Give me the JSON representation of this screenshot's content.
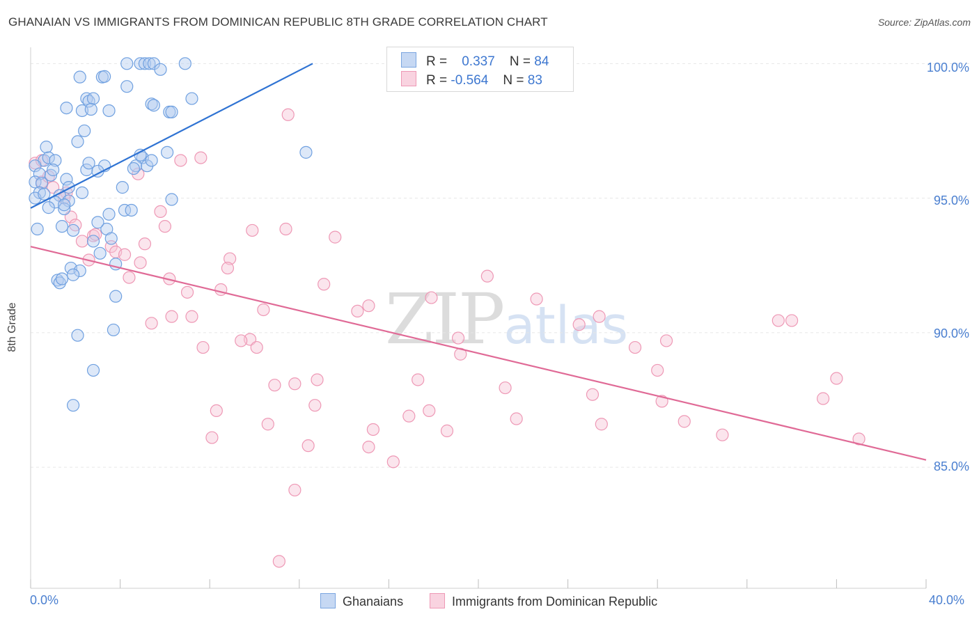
{
  "title": "GHANAIAN VS IMMIGRANTS FROM DOMINICAN REPUBLIC 8TH GRADE CORRELATION CHART",
  "source": "Source: ZipAtlas.com",
  "watermark": {
    "zip": "ZIP",
    "atlas": "atlas"
  },
  "stats": {
    "row1": {
      "r_label": "R =",
      "r_value": "0.337",
      "n_label": "N =",
      "n_value": "84"
    },
    "row2": {
      "r_label": "R =",
      "r_value": "-0.564",
      "n_label": "N =",
      "n_value": "83"
    }
  },
  "legend": {
    "series1": "Ghanaians",
    "series2": "Immigrants from Dominican Republic"
  },
  "colors": {
    "blue": "#6fa0e0",
    "blue_line": "#2f73d3",
    "pink": "#ee98b5",
    "pink_line": "#e06a96",
    "tick": "#4a7fd0",
    "grid": "#e6e6e6"
  },
  "chart_data": {
    "type": "scatter",
    "title": "GHANAIAN VS IMMIGRANTS FROM DOMINICAN REPUBLIC 8TH GRADE CORRELATION CHART",
    "xlabel": "",
    "ylabel": "8th Grade",
    "xlim": [
      0,
      40
    ],
    "ylim": [
      80.5,
      100.5
    ],
    "x_tick_labels": [
      "0.0%",
      "40.0%"
    ],
    "y_ticks": [
      85,
      90,
      95,
      100
    ],
    "y_tick_labels": [
      "85.0%",
      "90.0%",
      "95.0%",
      "100.0%"
    ],
    "grid": true,
    "series": [
      {
        "name": "Ghanaians",
        "r": 0.337,
        "n": 84,
        "trend": {
          "x": [
            0.0,
            12.6
          ],
          "y": [
            94.63,
            100.0
          ]
        },
        "points": [
          [
            4.3,
            100.0
          ],
          [
            4.9,
            100.0
          ],
          [
            5.1,
            100.0
          ],
          [
            5.3,
            100.0
          ],
          [
            5.5,
            100.0
          ],
          [
            6.9,
            100.0
          ],
          [
            5.8,
            99.78
          ],
          [
            2.2,
            99.5
          ],
          [
            3.2,
            99.5
          ],
          [
            3.3,
            99.52
          ],
          [
            4.3,
            99.15
          ],
          [
            2.5,
            98.7
          ],
          [
            2.6,
            98.6
          ],
          [
            2.8,
            98.7
          ],
          [
            7.2,
            98.7
          ],
          [
            1.6,
            98.35
          ],
          [
            2.3,
            98.25
          ],
          [
            2.7,
            98.3
          ],
          [
            3.5,
            98.25
          ],
          [
            5.4,
            98.5
          ],
          [
            5.5,
            98.45
          ],
          [
            6.2,
            98.2
          ],
          [
            6.3,
            98.2
          ],
          [
            2.4,
            97.5
          ],
          [
            2.1,
            97.1
          ],
          [
            0.7,
            96.9
          ],
          [
            6.1,
            96.7
          ],
          [
            12.3,
            96.7
          ],
          [
            5.0,
            96.5
          ],
          [
            0.6,
            96.4
          ],
          [
            0.8,
            96.5
          ],
          [
            1.1,
            96.4
          ],
          [
            3.3,
            96.2
          ],
          [
            4.7,
            96.2
          ],
          [
            5.2,
            96.2
          ],
          [
            5.4,
            96.4
          ],
          [
            2.5,
            96.05
          ],
          [
            3.0,
            96.0
          ],
          [
            0.2,
            96.2
          ],
          [
            0.4,
            95.9
          ],
          [
            0.9,
            95.85
          ],
          [
            1.6,
            95.7
          ],
          [
            0.2,
            95.6
          ],
          [
            0.5,
            95.55
          ],
          [
            1.7,
            95.4
          ],
          [
            4.1,
            95.4
          ],
          [
            0.4,
            95.2
          ],
          [
            1.3,
            95.1
          ],
          [
            2.3,
            95.2
          ],
          [
            6.3,
            94.95
          ],
          [
            1.1,
            94.85
          ],
          [
            1.7,
            94.9
          ],
          [
            0.8,
            94.65
          ],
          [
            1.5,
            94.6
          ],
          [
            4.2,
            94.55
          ],
          [
            4.5,
            94.55
          ],
          [
            3.5,
            94.4
          ],
          [
            0.3,
            93.85
          ],
          [
            1.4,
            93.95
          ],
          [
            1.9,
            93.8
          ],
          [
            3.4,
            93.85
          ],
          [
            3.6,
            93.5
          ],
          [
            3.1,
            92.95
          ],
          [
            3.8,
            92.55
          ],
          [
            1.8,
            92.4
          ],
          [
            2.2,
            92.3
          ],
          [
            1.9,
            92.15
          ],
          [
            1.2,
            91.95
          ],
          [
            1.3,
            91.85
          ],
          [
            3.8,
            91.35
          ],
          [
            3.7,
            90.1
          ],
          [
            2.1,
            89.9
          ],
          [
            2.8,
            88.6
          ],
          [
            1.9,
            87.3
          ],
          [
            0.2,
            95.0
          ],
          [
            1.0,
            96.05
          ],
          [
            2.6,
            96.3
          ],
          [
            4.9,
            96.6
          ],
          [
            0.6,
            95.15
          ],
          [
            3.0,
            94.1
          ],
          [
            1.5,
            94.75
          ],
          [
            2.8,
            93.4
          ],
          [
            1.4,
            92.0
          ],
          [
            4.6,
            96.1
          ]
        ]
      },
      {
        "name": "Immigrants from Dominican Republic",
        "r": -0.564,
        "n": 83,
        "trend": {
          "x": [
            0.0,
            40.0
          ],
          "y": [
            93.2,
            85.27
          ]
        },
        "points": [
          [
            0.2,
            96.3
          ],
          [
            0.5,
            95.6
          ],
          [
            0.8,
            95.8
          ],
          [
            1.6,
            95.2
          ],
          [
            1.5,
            95.0
          ],
          [
            1.8,
            94.3
          ],
          [
            2.0,
            94.0
          ],
          [
            4.8,
            95.9
          ],
          [
            6.7,
            96.4
          ],
          [
            7.6,
            96.5
          ],
          [
            11.5,
            98.1
          ],
          [
            5.8,
            94.5
          ],
          [
            6.0,
            93.95
          ],
          [
            9.9,
            93.8
          ],
          [
            11.4,
            93.85
          ],
          [
            13.6,
            93.55
          ],
          [
            2.3,
            93.4
          ],
          [
            2.8,
            93.6
          ],
          [
            3.6,
            93.2
          ],
          [
            3.8,
            93.0
          ],
          [
            4.2,
            92.9
          ],
          [
            5.1,
            93.3
          ],
          [
            2.6,
            92.7
          ],
          [
            4.9,
            92.6
          ],
          [
            8.9,
            92.75
          ],
          [
            8.8,
            92.4
          ],
          [
            4.4,
            92.05
          ],
          [
            6.2,
            92.0
          ],
          [
            20.4,
            92.1
          ],
          [
            13.1,
            91.8
          ],
          [
            7.0,
            91.5
          ],
          [
            8.5,
            91.6
          ],
          [
            17.9,
            91.3
          ],
          [
            22.6,
            91.25
          ],
          [
            15.1,
            91.0
          ],
          [
            14.6,
            90.8
          ],
          [
            10.4,
            90.85
          ],
          [
            6.3,
            90.6
          ],
          [
            7.2,
            90.6
          ],
          [
            25.4,
            90.6
          ],
          [
            5.4,
            90.35
          ],
          [
            24.5,
            90.3
          ],
          [
            33.4,
            90.45
          ],
          [
            34.0,
            90.45
          ],
          [
            19.1,
            89.8
          ],
          [
            9.8,
            89.75
          ],
          [
            9.4,
            89.7
          ],
          [
            28.4,
            89.7
          ],
          [
            10.1,
            89.45
          ],
          [
            7.7,
            89.45
          ],
          [
            27.0,
            89.45
          ],
          [
            19.2,
            89.2
          ],
          [
            28.0,
            88.6
          ],
          [
            36.0,
            88.3
          ],
          [
            12.8,
            88.25
          ],
          [
            17.3,
            88.25
          ],
          [
            11.8,
            88.1
          ],
          [
            10.9,
            88.05
          ],
          [
            21.2,
            87.95
          ],
          [
            25.1,
            87.7
          ],
          [
            35.4,
            87.55
          ],
          [
            28.2,
            87.45
          ],
          [
            12.7,
            87.3
          ],
          [
            8.3,
            87.1
          ],
          [
            17.8,
            87.1
          ],
          [
            16.9,
            86.9
          ],
          [
            21.7,
            86.8
          ],
          [
            29.2,
            86.7
          ],
          [
            10.6,
            86.6
          ],
          [
            25.5,
            86.6
          ],
          [
            15.3,
            86.4
          ],
          [
            18.6,
            86.35
          ],
          [
            30.9,
            86.2
          ],
          [
            8.1,
            86.1
          ],
          [
            37.0,
            86.05
          ],
          [
            12.4,
            85.8
          ],
          [
            15.1,
            85.75
          ],
          [
            16.2,
            85.2
          ],
          [
            11.8,
            84.15
          ],
          [
            11.1,
            81.5
          ],
          [
            0.5,
            96.4
          ],
          [
            1.0,
            95.4
          ],
          [
            2.9,
            93.65
          ]
        ]
      }
    ]
  }
}
